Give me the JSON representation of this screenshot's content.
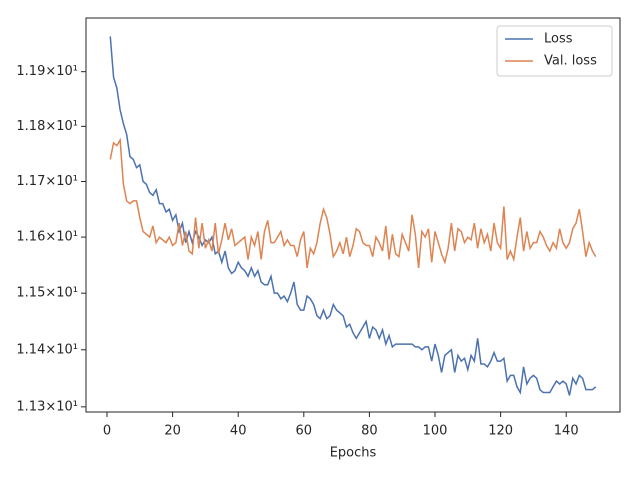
{
  "chart_data": {
    "type": "line",
    "xlabel": "Epochs",
    "ylog": true,
    "grid": false,
    "legend": "upper right",
    "x": [
      1,
      2,
      3,
      4,
      5,
      6,
      7,
      8,
      9,
      10,
      11,
      12,
      13,
      14,
      15,
      16,
      17,
      18,
      19,
      20,
      21,
      22,
      23,
      24,
      25,
      26,
      27,
      28,
      29,
      30,
      31,
      32,
      33,
      34,
      35,
      36,
      37,
      38,
      39,
      40,
      41,
      42,
      43,
      44,
      45,
      46,
      47,
      48,
      49,
      50,
      51,
      52,
      53,
      54,
      55,
      56,
      57,
      58,
      59,
      60,
      61,
      62,
      63,
      64,
      65,
      66,
      67,
      68,
      69,
      70,
      71,
      72,
      73,
      74,
      75,
      76,
      77,
      78,
      79,
      80,
      81,
      82,
      83,
      84,
      85,
      86,
      87,
      88,
      89,
      90,
      91,
      92,
      93,
      94,
      95,
      96,
      97,
      98,
      99,
      100,
      101,
      102,
      103,
      104,
      105,
      106,
      107,
      108,
      109,
      110,
      111,
      112,
      113,
      114,
      115,
      116,
      117,
      118,
      119,
      120,
      121,
      122,
      123,
      124,
      125,
      126,
      127,
      128,
      129,
      130,
      131,
      132,
      133,
      134,
      135,
      136,
      137,
      138,
      139,
      140,
      141,
      142,
      143,
      144,
      145,
      146,
      147,
      148,
      149
    ],
    "series": [
      {
        "name": "Loss",
        "color": "#4c72b0",
        "values": [
          11.965,
          11.89,
          11.87,
          11.83,
          11.805,
          11.785,
          11.745,
          11.74,
          11.725,
          11.73,
          11.7,
          11.695,
          11.68,
          11.675,
          11.685,
          11.66,
          11.66,
          11.645,
          11.65,
          11.63,
          11.64,
          11.61,
          11.625,
          11.59,
          11.61,
          11.59,
          11.61,
          11.6,
          11.585,
          11.595,
          11.59,
          11.6,
          11.57,
          11.575,
          11.555,
          11.575,
          11.545,
          11.535,
          11.54,
          11.555,
          11.545,
          11.54,
          11.53,
          11.545,
          11.53,
          11.54,
          11.52,
          11.515,
          11.515,
          11.53,
          11.5,
          11.5,
          11.49,
          11.495,
          11.485,
          11.5,
          11.52,
          11.48,
          11.47,
          11.47,
          11.495,
          11.49,
          11.48,
          11.46,
          11.455,
          11.47,
          11.455,
          11.46,
          11.48,
          11.47,
          11.465,
          11.46,
          11.44,
          11.445,
          11.43,
          11.42,
          11.43,
          11.44,
          11.45,
          11.42,
          11.44,
          11.435,
          11.42,
          11.435,
          11.41,
          11.425,
          11.405,
          11.41,
          11.41,
          11.41,
          11.41,
          11.41,
          11.41,
          11.405,
          11.405,
          11.4,
          11.405,
          11.405,
          11.38,
          11.41,
          11.39,
          11.36,
          11.39,
          11.395,
          11.4,
          11.36,
          11.39,
          11.38,
          11.385,
          11.365,
          11.39,
          11.38,
          11.42,
          11.375,
          11.375,
          11.37,
          11.38,
          11.395,
          11.38,
          11.38,
          11.385,
          11.345,
          11.355,
          11.355,
          11.335,
          11.325,
          11.37,
          11.34,
          11.35,
          11.355,
          11.35,
          11.33,
          11.325,
          11.325,
          11.325,
          11.335,
          11.345,
          11.34,
          11.345,
          11.34,
          11.32,
          11.35,
          11.34,
          11.355,
          11.35,
          11.33,
          11.33,
          11.33,
          11.335
        ]
      },
      {
        "name": "Val. loss",
        "color": "#dd8452",
        "values": [
          11.74,
          11.77,
          11.765,
          11.775,
          11.695,
          11.665,
          11.66,
          11.665,
          11.665,
          11.635,
          11.61,
          11.605,
          11.6,
          11.62,
          11.59,
          11.6,
          11.595,
          11.59,
          11.6,
          11.585,
          11.59,
          11.625,
          11.585,
          11.61,
          11.575,
          11.57,
          11.635,
          11.58,
          11.625,
          11.58,
          11.595,
          11.575,
          11.625,
          11.57,
          11.595,
          11.625,
          11.595,
          11.615,
          11.585,
          11.59,
          11.595,
          11.6,
          11.56,
          11.6,
          11.585,
          11.61,
          11.56,
          11.61,
          11.63,
          11.59,
          11.59,
          11.6,
          11.61,
          11.585,
          11.595,
          11.585,
          11.585,
          11.565,
          11.595,
          11.61,
          11.545,
          11.58,
          11.57,
          11.59,
          11.625,
          11.65,
          11.635,
          11.605,
          11.565,
          11.575,
          11.59,
          11.57,
          11.6,
          11.565,
          11.585,
          11.615,
          11.61,
          11.59,
          11.585,
          11.585,
          11.565,
          11.6,
          11.59,
          11.575,
          11.62,
          11.56,
          11.605,
          11.57,
          11.565,
          11.605,
          11.59,
          11.575,
          11.64,
          11.605,
          11.545,
          11.61,
          11.6,
          11.615,
          11.555,
          11.61,
          11.59,
          11.57,
          11.555,
          11.58,
          11.625,
          11.575,
          11.615,
          11.61,
          11.59,
          11.6,
          11.595,
          11.625,
          11.58,
          11.615,
          11.59,
          11.605,
          11.575,
          11.625,
          11.59,
          11.58,
          11.655,
          11.56,
          11.575,
          11.56,
          11.6,
          11.635,
          11.575,
          11.61,
          11.58,
          11.59,
          11.59,
          11.61,
          11.6,
          11.585,
          11.575,
          11.59,
          11.58,
          11.615,
          11.59,
          11.58,
          11.59,
          11.615,
          11.625,
          11.65,
          11.61,
          11.565,
          11.59,
          11.575,
          11.565
        ]
      }
    ],
    "xlim": [
      -6.4,
      156.4
    ],
    "xticks": [
      0,
      20,
      40,
      60,
      80,
      100,
      120,
      140
    ],
    "ylim": [
      11.291,
      11.999
    ],
    "yticks": [
      {
        "value": 11.3,
        "label": "1.13×10¹"
      },
      {
        "value": 11.4,
        "label": "1.14×10¹"
      },
      {
        "value": 11.5,
        "label": "1.15×10¹"
      },
      {
        "value": 11.6,
        "label": "1.16×10¹"
      },
      {
        "value": 11.7,
        "label": "1.17×10¹"
      },
      {
        "value": 11.8,
        "label": "1.18×10¹"
      },
      {
        "value": 11.9,
        "label": "1.19×10¹"
      }
    ]
  }
}
